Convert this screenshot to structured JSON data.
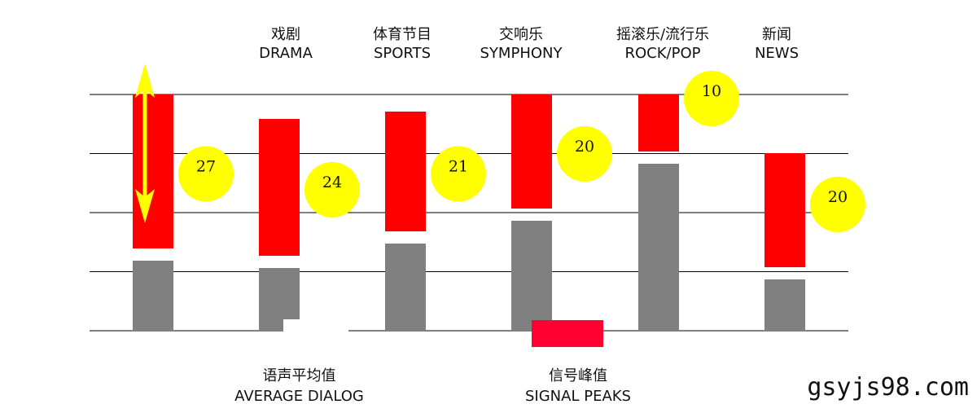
{
  "chart_data": {
    "type": "bar",
    "categories": [
      {
        "zh": "",
        "en": ""
      },
      {
        "zh": "戏剧",
        "en": "DRAMA"
      },
      {
        "zh": "体育节目",
        "en": "SPORTS"
      },
      {
        "zh": "交响乐",
        "en": "SYMPHONY"
      },
      {
        "zh": "摇滚乐/流行乐",
        "en": "ROCK/POP"
      },
      {
        "zh": "新闻",
        "en": "NEWS"
      }
    ],
    "peak_to_average": [
      27,
      24,
      21,
      20,
      10,
      20
    ],
    "colors": {
      "peak": "#ff0000",
      "average": "#808080",
      "badge": "#ffff00",
      "arrow": "#ffff00",
      "legend_peak_swatch": "#ff0033",
      "gridline": "#000000"
    },
    "legend": {
      "average": {
        "zh": "语声平均值",
        "en": "AVERAGE DIALOG"
      },
      "peak": {
        "zh": "信号峰值",
        "en": "SIGNAL PEAKS"
      }
    },
    "gridlines": 5
  },
  "watermark": "gsyjs98.com"
}
